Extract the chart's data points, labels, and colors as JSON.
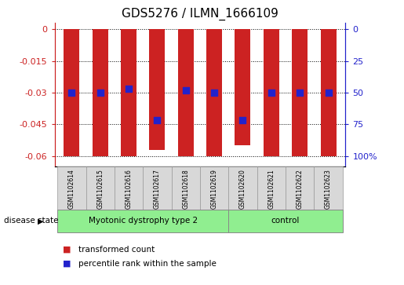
{
  "title": "GDS5276 / ILMN_1666109",
  "samples": [
    "GSM1102614",
    "GSM1102615",
    "GSM1102616",
    "GSM1102617",
    "GSM1102618",
    "GSM1102619",
    "GSM1102620",
    "GSM1102621",
    "GSM1102622",
    "GSM1102623"
  ],
  "bar_values": [
    -0.06,
    -0.06,
    -0.06,
    -0.057,
    -0.06,
    -0.06,
    -0.055,
    -0.06,
    -0.06,
    -0.06
  ],
  "dot_values": [
    -0.03,
    -0.03,
    -0.028,
    -0.043,
    -0.029,
    -0.03,
    -0.043,
    -0.03,
    -0.03,
    -0.03
  ],
  "bar_color": "#cc2222",
  "dot_color": "#2222cc",
  "ylim": [
    -0.065,
    0.003
  ],
  "yticks": [
    0,
    -0.015,
    -0.03,
    -0.045,
    -0.06
  ],
  "ytick_labels": [
    "0",
    "-0.015",
    "-0.03",
    "-0.045",
    "-0.06"
  ],
  "y2ticks": [
    0,
    25,
    50,
    75,
    100
  ],
  "y2tick_labels": [
    "0",
    "25",
    "50",
    "75",
    "100%"
  ],
  "y2lim_min": 0,
  "y2lim_max": 103.6,
  "grid_y": [
    0,
    -0.015,
    -0.03,
    -0.045,
    -0.06
  ],
  "disease_groups": [
    {
      "label": "Myotonic dystrophy type 2",
      "start": 0,
      "end": 6
    },
    {
      "label": "control",
      "start": 6,
      "end": 10
    }
  ],
  "disease_state_label": "disease state",
  "legend_items": [
    {
      "label": "transformed count",
      "color": "#cc2222"
    },
    {
      "label": "percentile rank within the sample",
      "color": "#2222cc"
    }
  ],
  "bar_width": 0.55,
  "dot_size": 35,
  "background_color": "#ffffff",
  "group_color": "#90ee90",
  "sample_box_color": "#d8d8d8"
}
